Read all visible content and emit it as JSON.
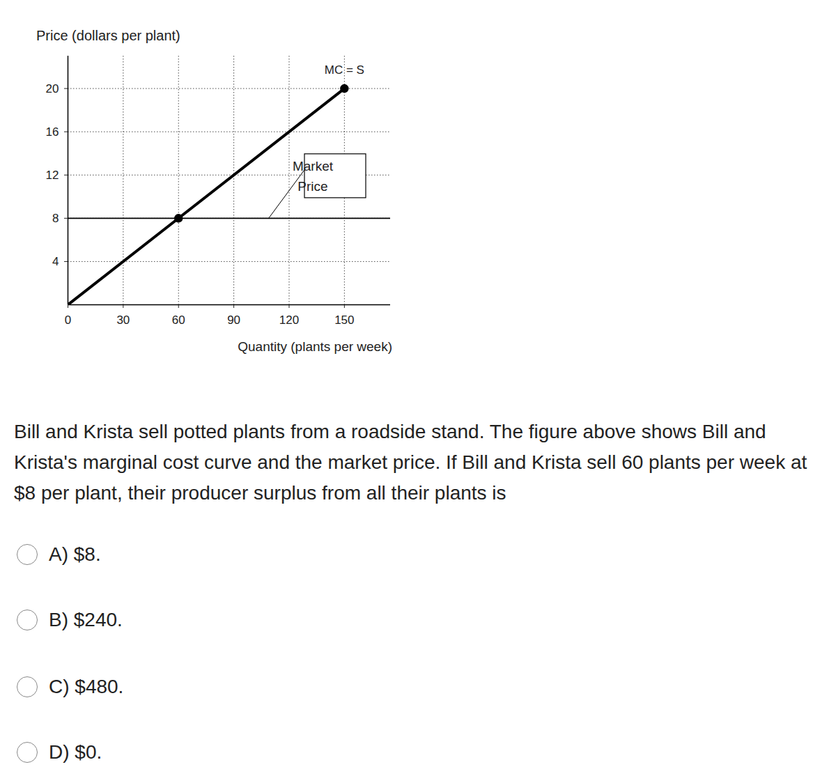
{
  "chart_data": {
    "type": "line",
    "y_label": "Price (dollars per plant)",
    "x_label": "Quantity (plants per week)",
    "xlim": [
      0,
      175
    ],
    "ylim": [
      0,
      23
    ],
    "xticks": [
      0,
      30,
      60,
      90,
      120,
      150
    ],
    "yticks": [
      4,
      8,
      12,
      16,
      20
    ],
    "grid": true,
    "series": [
      {
        "name": "MC = S",
        "type": "line",
        "x": [
          0,
          150
        ],
        "values": [
          0,
          20
        ],
        "color": "#000000",
        "line_style": "bold"
      },
      {
        "name": "Market Price",
        "type": "line",
        "x": [
          0,
          175
        ],
        "values": [
          8,
          8
        ],
        "color": "#000000",
        "line_style": "solid"
      },
      {
        "type": "scatter",
        "x": [
          60,
          150
        ],
        "values": [
          8,
          20
        ],
        "color": "#000000",
        "marker": "circle"
      }
    ]
  },
  "question": {
    "text": "Bill and Krista sell potted plants from a roadside stand. The figure above shows Bill and Krista's marginal cost curve and the market price. If Bill and Krista sell 60 plants per week at $8 per plant, their producer surplus from all their plants is",
    "options": [
      {
        "letter": "A)",
        "text": "$8."
      },
      {
        "letter": "B)",
        "text": "$240."
      },
      {
        "letter": "C)",
        "text": "$480."
      },
      {
        "letter": "D)",
        "text": "$0."
      }
    ]
  }
}
